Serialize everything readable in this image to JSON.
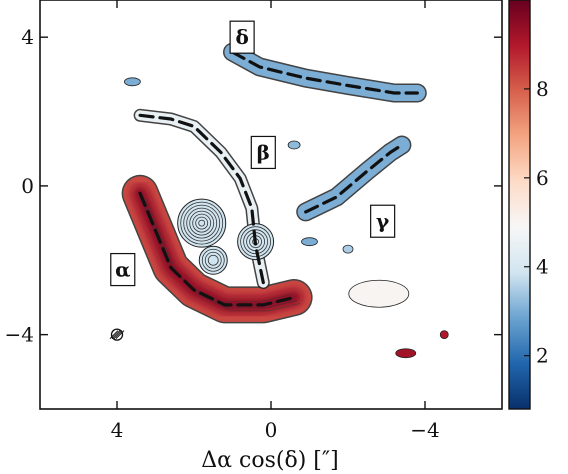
{
  "chart_data": {
    "type": "heatmap",
    "xlabel": "Δα cos(δ) [″]",
    "xlim": [
      6,
      -6
    ],
    "ylim": [
      -6,
      5
    ],
    "xticks": [
      {
        "value": 4,
        "label": "4"
      },
      {
        "value": 0,
        "label": "0"
      },
      {
        "value": -4,
        "label": "−4"
      }
    ],
    "yticks": [
      {
        "value": 4,
        "label": "4"
      },
      {
        "value": 0,
        "label": "0"
      },
      {
        "value": -4,
        "label": "−4"
      }
    ],
    "colorbar": {
      "range": [
        0.8,
        10
      ],
      "ticks": [
        {
          "value": 2,
          "label": "2"
        },
        {
          "value": 4,
          "label": "4"
        },
        {
          "value": 6,
          "label": "6"
        },
        {
          "value": 8,
          "label": "8"
        }
      ],
      "colors": [
        "#08306b",
        "#2166ac",
        "#6ba3d0",
        "#d1e5f0",
        "#f7f7f7",
        "#fddbc7",
        "#f4a582",
        "#d6604d",
        "#b2182b",
        "#67001f"
      ]
    },
    "features": [
      {
        "label": "α",
        "level": 8.3,
        "path": [
          [
            3.4,
            -0.2
          ],
          [
            3.0,
            -1.2
          ],
          [
            2.6,
            -2.2
          ],
          [
            2.0,
            -2.8
          ],
          [
            1.2,
            -3.2
          ],
          [
            0.2,
            -3.2
          ],
          [
            -0.6,
            -3.0
          ]
        ]
      },
      {
        "label": "β",
        "level": 4.5,
        "path": [
          [
            3.4,
            1.9
          ],
          [
            2.6,
            1.8
          ],
          [
            2.0,
            1.6
          ],
          [
            1.3,
            0.9
          ],
          [
            0.8,
            0.2
          ],
          [
            0.5,
            -0.6
          ],
          [
            0.4,
            -1.6
          ],
          [
            0.2,
            -2.6
          ]
        ]
      },
      {
        "label": "γ",
        "level": 3.0,
        "path": [
          [
            -0.9,
            -0.7
          ],
          [
            -1.7,
            -0.3
          ],
          [
            -2.5,
            0.4
          ],
          [
            -3.1,
            0.9
          ],
          [
            -3.4,
            1.1
          ]
        ]
      },
      {
        "label": "δ",
        "level": 3.0,
        "path": [
          [
            1.0,
            3.6
          ],
          [
            0.3,
            3.2
          ],
          [
            -0.9,
            2.9
          ],
          [
            -2.0,
            2.7
          ],
          [
            -3.2,
            2.5
          ],
          [
            -3.8,
            2.5
          ]
        ]
      }
    ],
    "beam": {
      "x": 4.0,
      "y": -4.0
    }
  }
}
